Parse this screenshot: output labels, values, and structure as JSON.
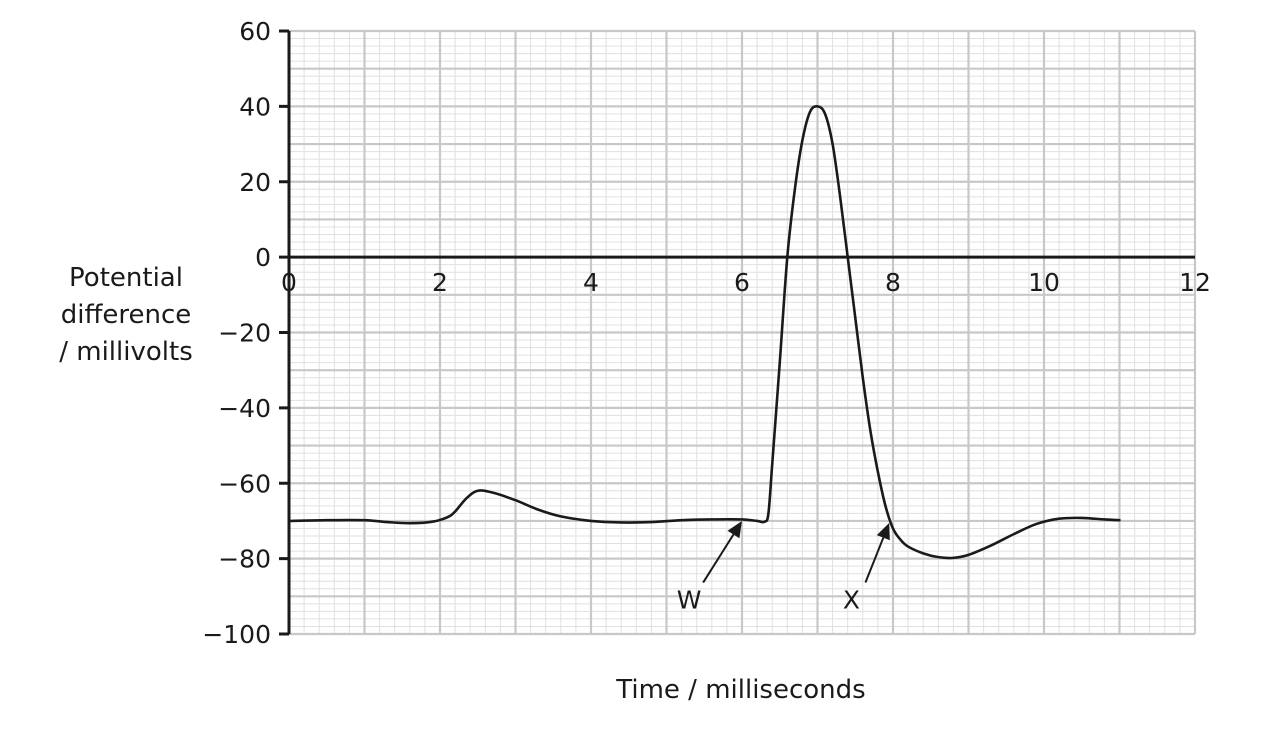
{
  "chart_data": {
    "type": "line",
    "title": "",
    "xlabel": "Time / milliseconds",
    "ylabel_lines": [
      "Potential",
      "difference",
      "/ millivolts"
    ],
    "xlim": [
      0,
      12
    ],
    "ylim": [
      -100,
      60
    ],
    "x_ticks": [
      0,
      2,
      4,
      6,
      8,
      10,
      12
    ],
    "y_ticks": [
      60,
      40,
      20,
      0,
      -20,
      -40,
      -60,
      -80,
      -100
    ],
    "x_tick_labels": [
      "0",
      "2",
      "4",
      "6",
      "8",
      "10",
      "12"
    ],
    "y_tick_labels": [
      "60",
      "40",
      "20",
      "0",
      "−20",
      "−40",
      "−60",
      "−80",
      "−100"
    ],
    "grid": {
      "major": true,
      "minor": true,
      "major_x_step": 1,
      "major_y_step": 10,
      "minor_x_step": 0.2,
      "minor_y_step": 2
    },
    "colors": {
      "line": "#1a1a1a",
      "grid_major": "#c8c8c8",
      "grid_minor": "#e0e0e0",
      "axis": "#1a1a1a"
    },
    "series": [
      {
        "x": [
          0,
          0.5,
          1.0,
          1.3,
          1.6,
          1.9,
          2.1,
          2.2,
          2.35,
          2.5,
          2.7,
          3.0,
          3.3,
          3.6,
          4.0,
          4.4,
          4.8,
          5.2,
          5.6,
          6.0,
          6.2,
          6.3,
          6.35,
          6.4,
          6.5,
          6.6,
          6.7,
          6.8,
          6.9,
          7.0,
          7.1,
          7.2,
          7.3,
          7.4,
          7.5,
          7.6,
          7.7,
          7.8,
          7.9,
          8.0,
          8.1,
          8.2,
          8.4,
          8.6,
          8.8,
          9.0,
          9.3,
          9.6,
          9.9,
          10.2,
          10.5,
          10.8,
          11.0
        ],
        "y": [
          -70,
          -69.8,
          -69.8,
          -70.3,
          -70.6,
          -70.2,
          -69,
          -67.5,
          -64,
          -62,
          -62.5,
          -64.5,
          -67,
          -68.8,
          -70,
          -70.4,
          -70.3,
          -69.8,
          -69.6,
          -69.6,
          -70,
          -70.2,
          -68,
          -55,
          -28,
          0,
          18,
          31,
          38.5,
          40,
          38,
          30,
          16,
          0,
          -16,
          -32,
          -46,
          -57,
          -66,
          -72,
          -75,
          -76.8,
          -78.6,
          -79.6,
          -79.8,
          -79,
          -76.5,
          -73.5,
          -70.8,
          -69.4,
          -69.2,
          -69.6,
          -69.8
        ]
      }
    ],
    "annotations": [
      {
        "label": "W",
        "x": 5.3,
        "y": -89,
        "arrow_to_x": 6.0,
        "arrow_to_y": -70
      },
      {
        "label": "X",
        "x": 7.45,
        "y": -89,
        "arrow_to_x": 7.95,
        "arrow_to_y": -70.5
      }
    ]
  }
}
